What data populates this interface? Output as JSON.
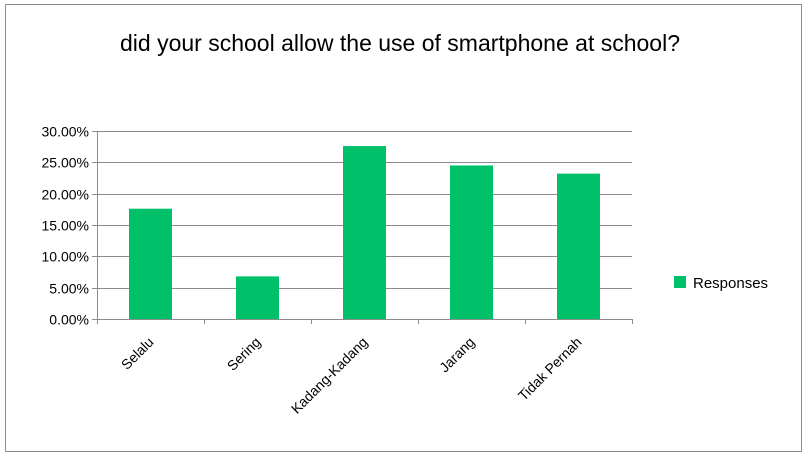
{
  "chart_data": {
    "type": "bar",
    "title": "did your school allow the use of smartphone at school?",
    "categories": [
      "Selalu",
      "Sering",
      "Kadang-Kadang",
      "Jarang",
      "Tidak Pernah"
    ],
    "series": [
      {
        "name": "Responses",
        "values": [
          17.6,
          6.8,
          27.6,
          24.5,
          23.2
        ],
        "color": "#00c06a"
      }
    ],
    "yticks": [
      "0.00%",
      "5.00%",
      "10.00%",
      "15.00%",
      "20.00%",
      "25.00%",
      "30.00%"
    ],
    "ylim": [
      0,
      30
    ],
    "xlabel": "",
    "ylabel": "",
    "grid": true,
    "legend_position": "right"
  }
}
